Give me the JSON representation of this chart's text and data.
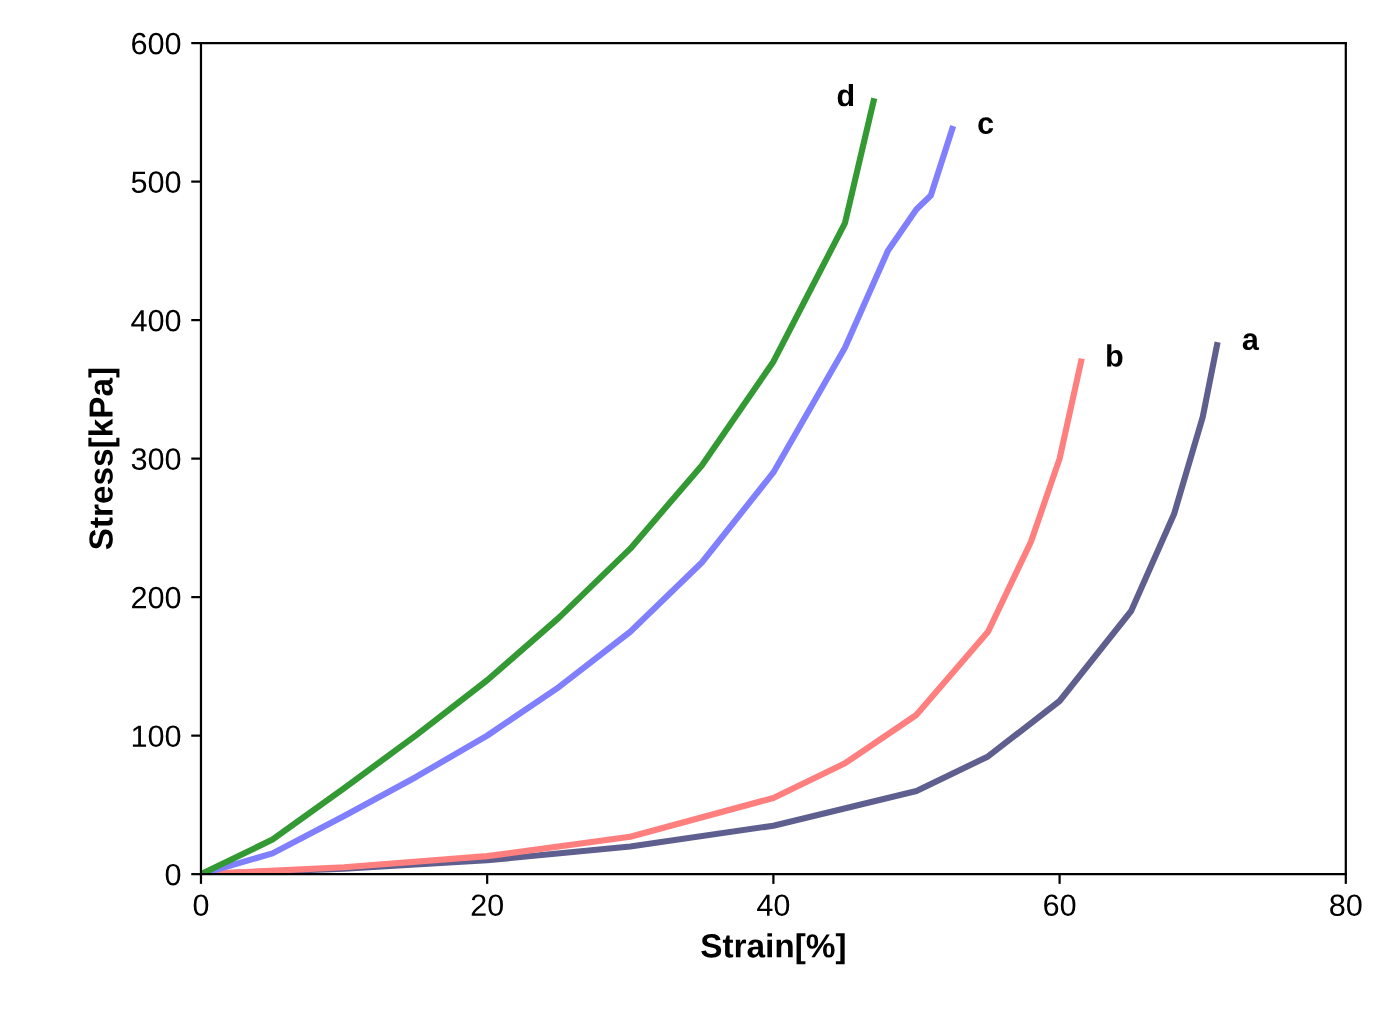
{
  "chart_data": {
    "type": "line",
    "xlabel": "Strain[%]",
    "ylabel": "Stress[kPa]",
    "xlim": [
      0,
      80
    ],
    "ylim": [
      0,
      600
    ],
    "xticks": [
      0,
      20,
      40,
      60,
      80
    ],
    "yticks": [
      0,
      100,
      200,
      300,
      400,
      500,
      600
    ],
    "grid": false,
    "legend": false,
    "marker": "none",
    "line_style": "solid",
    "series": [
      {
        "name": "a",
        "color": "#5f5f8f",
        "x": [
          0,
          10,
          20,
          30,
          40,
          50,
          55,
          60,
          65,
          68,
          70,
          71
        ],
        "values": [
          0,
          4,
          10,
          20,
          35,
          60,
          85,
          125,
          190,
          260,
          330,
          382
        ]
      },
      {
        "name": "b",
        "color": "#ff7f7f",
        "x": [
          0,
          10,
          20,
          30,
          40,
          45,
          50,
          55,
          58,
          60,
          61.5
        ],
        "values": [
          0,
          5,
          13,
          27,
          55,
          80,
          115,
          175,
          240,
          300,
          370
        ]
      },
      {
        "name": "c",
        "color": "#8080ff",
        "x": [
          0,
          5,
          10,
          15,
          20,
          25,
          30,
          35,
          40,
          45,
          48,
          50,
          51,
          52.5
        ],
        "values": [
          0,
          15,
          42,
          70,
          100,
          135,
          175,
          225,
          290,
          380,
          450,
          480,
          490,
          538
        ]
      },
      {
        "name": "d",
        "color": "#339933",
        "x": [
          0,
          5,
          10,
          15,
          20,
          25,
          30,
          35,
          40,
          45,
          47
        ],
        "values": [
          0,
          25,
          62,
          100,
          140,
          185,
          235,
          295,
          370,
          470,
          558
        ]
      }
    ]
  }
}
